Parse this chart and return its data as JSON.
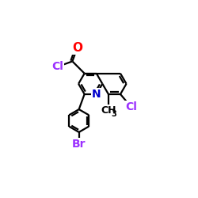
{
  "bg_color": "#ffffff",
  "bond_color": "#000000",
  "bond_width": 1.6,
  "atom_colors": {
    "O": "#ff0000",
    "Cl": "#9b30ff",
    "N": "#0000cc",
    "Br": "#9b30ff",
    "C": "#000000"
  },
  "font_size": 10,
  "font_size_sub": 7
}
